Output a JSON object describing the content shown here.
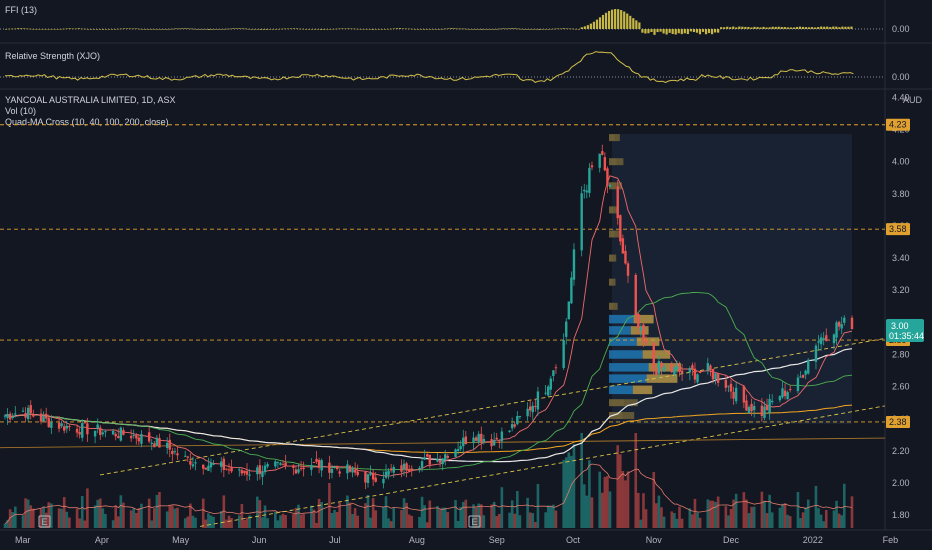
{
  "panes": {
    "ffi": {
      "label": "FFI (13)",
      "value": "0.00"
    },
    "rs": {
      "label": "Relative Strength (XJO)",
      "value": "0.00"
    }
  },
  "main": {
    "title": "YANCOAL AUSTRALIA LIMITED, 1D, ASX",
    "indicator_vol": "Vol (10)",
    "indicator_ma": "Quad-MA Cross (10, 40, 100, 200, close)",
    "currency": "AUD",
    "event_marker": "E",
    "last_price": "3.00",
    "countdown": "01:35:44"
  },
  "colors": {
    "background": "#131722",
    "up": "#26a69a",
    "down": "#ef5350",
    "ffi_bars": "#c7b745",
    "level_line": "#e0a02f",
    "ma10": "#f06a6a",
    "ma40": "#4caf50",
    "ma100": "#e8e8e8",
    "ma200": "#f5a623",
    "profile_blue": "#1f77b4",
    "profile_gold": "#c8a34a",
    "profile_brown": "#7a6a3a",
    "price_tag": "#26a69a"
  },
  "chart_data": {
    "type": "candlestick",
    "title": "YANCOAL AUSTRALIA LIMITED, 1D, ASX",
    "y_axis": {
      "ticks": [
        "4.40",
        "4.20",
        "4.00",
        "3.80",
        "3.60",
        "3.40",
        "3.20",
        "3.00",
        "2.80",
        "2.60",
        "2.40",
        "2.20",
        "2.00",
        "1.80"
      ],
      "range": [
        1.72,
        4.44
      ]
    },
    "x_axis": {
      "ticks": [
        "Mar",
        "Apr",
        "May",
        "Jun",
        "Jul",
        "Aug",
        "Sep",
        "Oct",
        "Nov",
        "Dec",
        "2022",
        "Feb"
      ]
    },
    "horizontal_levels": [
      {
        "label": "4.23",
        "value": 4.23
      },
      {
        "label": "3.58",
        "value": 3.58
      },
      {
        "label": "2.89",
        "value": 2.89
      },
      {
        "label": "2.38",
        "value": 2.38
      }
    ],
    "last_price": 3.0,
    "close_series": [
      [
        "2021-02-22",
        2.42
      ],
      [
        "2021-03-01",
        2.45
      ],
      [
        "2021-03-08",
        2.4
      ],
      [
        "2021-03-15",
        2.36
      ],
      [
        "2021-03-22",
        2.34
      ],
      [
        "2021-03-29",
        2.33
      ],
      [
        "2021-04-05",
        2.31
      ],
      [
        "2021-04-12",
        2.3
      ],
      [
        "2021-04-19",
        2.27
      ],
      [
        "2021-04-26",
        2.22
      ],
      [
        "2021-05-03",
        2.15
      ],
      [
        "2021-05-10",
        2.12
      ],
      [
        "2021-05-17",
        2.1
      ],
      [
        "2021-05-24",
        2.06
      ],
      [
        "2021-05-31",
        2.08
      ],
      [
        "2021-06-07",
        2.1
      ],
      [
        "2021-06-14",
        2.09
      ],
      [
        "2021-06-21",
        2.12
      ],
      [
        "2021-06-28",
        2.1
      ],
      [
        "2021-07-05",
        2.08
      ],
      [
        "2021-07-12",
        2.03
      ],
      [
        "2021-07-19",
        2.05
      ],
      [
        "2021-07-26",
        2.09
      ],
      [
        "2021-08-02",
        2.13
      ],
      [
        "2021-08-09",
        2.15
      ],
      [
        "2021-08-16",
        2.22
      ],
      [
        "2021-08-23",
        2.31
      ],
      [
        "2021-08-30",
        2.26
      ],
      [
        "2021-09-06",
        2.33
      ],
      [
        "2021-09-13",
        2.45
      ],
      [
        "2021-09-20",
        2.6
      ],
      [
        "2021-09-27",
        2.88
      ],
      [
        "2021-10-04",
        3.8
      ],
      [
        "2021-10-11",
        4.05
      ],
      [
        "2021-10-18",
        3.6
      ],
      [
        "2021-10-25",
        3.0
      ],
      [
        "2021-11-01",
        2.72
      ],
      [
        "2021-11-08",
        2.7
      ],
      [
        "2021-11-15",
        2.68
      ],
      [
        "2021-11-22",
        2.7
      ],
      [
        "2021-11-29",
        2.62
      ],
      [
        "2021-12-06",
        2.5
      ],
      [
        "2021-12-13",
        2.44
      ],
      [
        "2021-12-20",
        2.55
      ],
      [
        "2021-12-27",
        2.62
      ],
      [
        "2022-01-03",
        2.88
      ],
      [
        "2022-01-10",
        2.97
      ],
      [
        "2022-01-17",
        3.0
      ]
    ],
    "moving_averages": [
      {
        "name": "MA 10",
        "color": "#f06a6a"
      },
      {
        "name": "MA 40",
        "color": "#4caf50"
      },
      {
        "name": "MA 100",
        "color": "#e8e8e8"
      },
      {
        "name": "MA 200",
        "color": "#f5a623"
      }
    ],
    "volume_profile": [
      {
        "price": 4.15,
        "volume": 0.15
      },
      {
        "price": 4.0,
        "volume": 0.2
      },
      {
        "price": 3.85,
        "volume": 0.18
      },
      {
        "price": 3.7,
        "volume": 0.12
      },
      {
        "price": 3.55,
        "volume": 0.14
      },
      {
        "price": 3.4,
        "volume": 0.1
      },
      {
        "price": 3.25,
        "volume": 0.09
      },
      {
        "price": 3.1,
        "volume": 0.12
      },
      {
        "price": 3.02,
        "volume": 0.62
      },
      {
        "price": 2.95,
        "volume": 0.55
      },
      {
        "price": 2.88,
        "volume": 0.7
      },
      {
        "price": 2.8,
        "volume": 0.85
      },
      {
        "price": 2.72,
        "volume": 1.0
      },
      {
        "price": 2.65,
        "volume": 0.95
      },
      {
        "price": 2.58,
        "volume": 0.6
      },
      {
        "price": 2.5,
        "volume": 0.4
      },
      {
        "price": 2.42,
        "volume": 0.35
      }
    ]
  }
}
